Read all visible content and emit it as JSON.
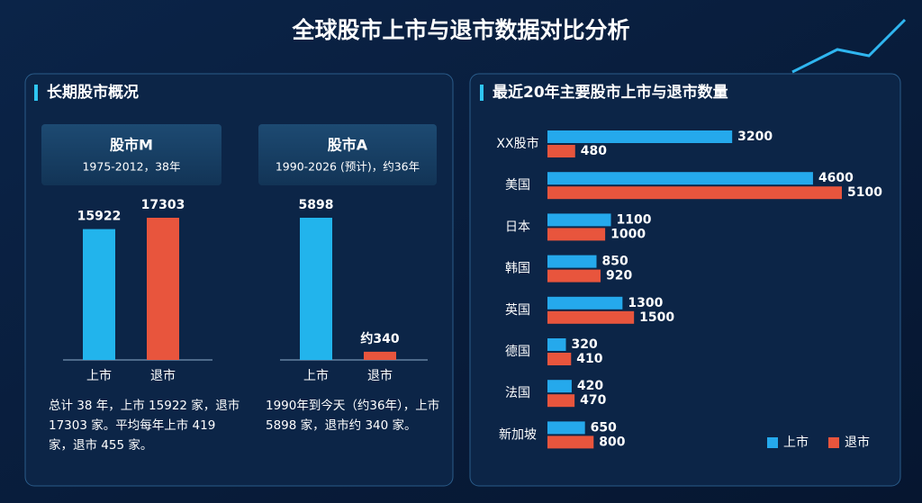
{
  "title": "全球股市上市与退市数据对比分析",
  "left_panel": {
    "heading": "长期股市概况"
  },
  "chart_data": [
    {
      "type": "bar",
      "title": "股市M",
      "subtitle": "1975-2012，38年",
      "categories": [
        "上市",
        "退市"
      ],
      "values": [
        15922,
        17303
      ],
      "colors": [
        "#22b4ec",
        "#e8553d"
      ],
      "note": "总计 38 年，上市 15922 家，退市 17303 家。平均每年上市 419 家，退市 455 家。"
    },
    {
      "type": "bar",
      "title": "股市A",
      "subtitle": "1990-2026 (预计)，约36年",
      "categories": [
        "上市",
        "退市"
      ],
      "values": [
        5898,
        340
      ],
      "value_labels": [
        "5898",
        "约340"
      ],
      "colors": [
        "#22b4ec",
        "#e8553d"
      ],
      "note": "1990年到今天（约36年），上市 5898 家，退市约 340 家。"
    },
    {
      "type": "hbar",
      "title": "最近20年主要股市上市与退市数量",
      "categories": [
        "XX股市",
        "美国",
        "日本",
        "韩国",
        "英国",
        "德国",
        "法国",
        "新加坡"
      ],
      "series": [
        {
          "name": "上市",
          "color": "#25a9ec",
          "values": [
            3200,
            4600,
            1100,
            850,
            1300,
            320,
            420,
            650
          ]
        },
        {
          "name": "退市",
          "color": "#e8553d",
          "values": [
            480,
            5100,
            1000,
            920,
            1500,
            410,
            470,
            800
          ]
        }
      ]
    }
  ]
}
